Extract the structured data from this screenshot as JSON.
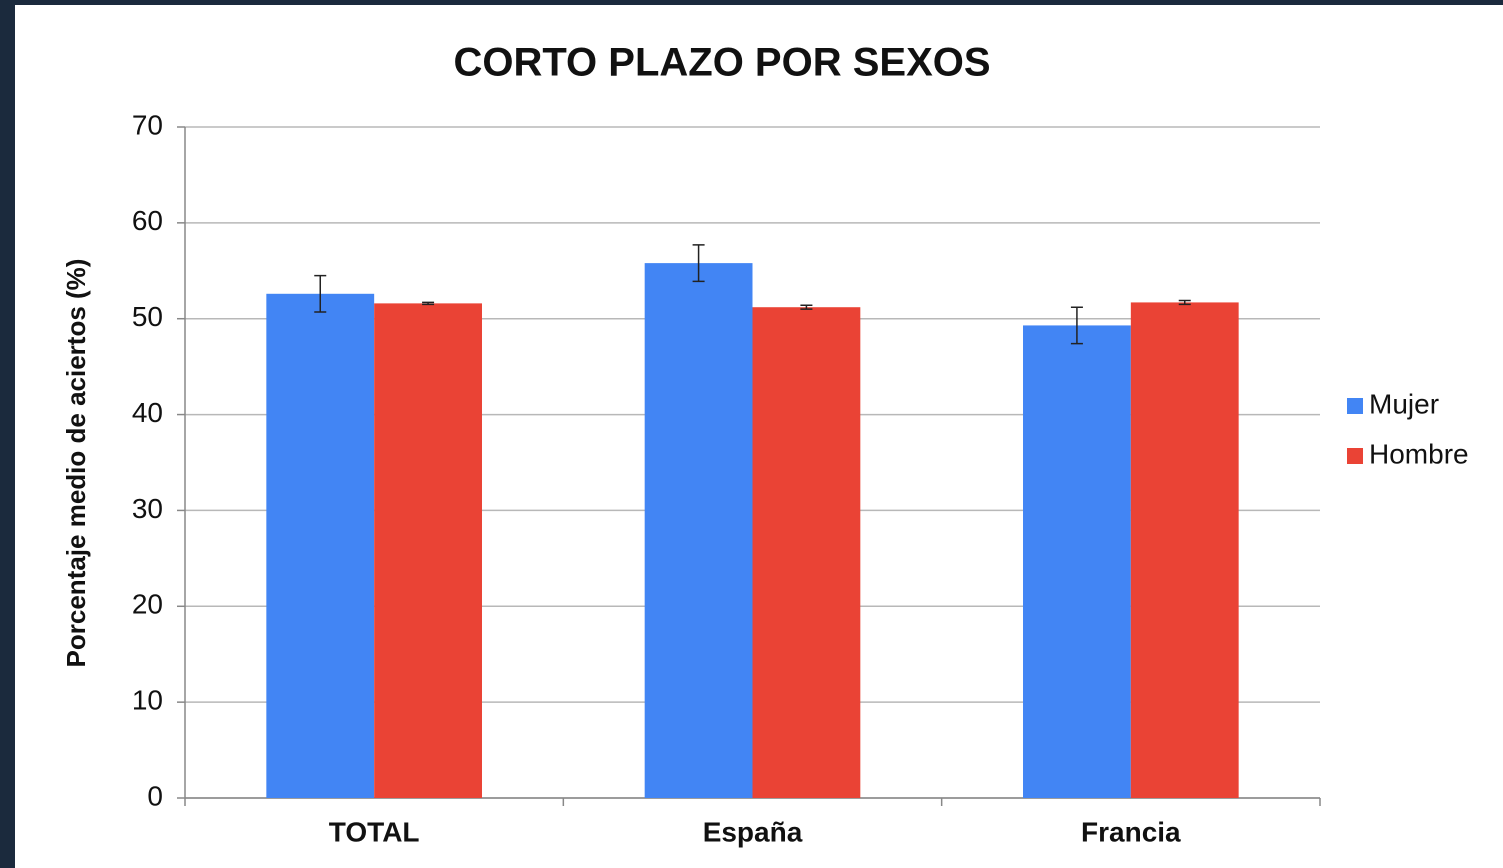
{
  "chart_data": {
    "type": "bar",
    "title": "CORTO PLAZO POR SEXOS",
    "y_label": "Porcentaje medio de aciertos (%)",
    "categories": [
      "TOTAL",
      "España",
      "Francia"
    ],
    "series": [
      {
        "name": "Mujer",
        "color": "#4285f4",
        "values": [
          52.6,
          55.8,
          49.3
        ],
        "errors": [
          1.9,
          1.9,
          1.9
        ]
      },
      {
        "name": "Hombre",
        "color": "#ea4335",
        "values": [
          51.6,
          51.2,
          51.7
        ],
        "errors": [
          0.1,
          0.2,
          0.2
        ]
      }
    ],
    "ylim": [
      0,
      70
    ],
    "yticks": [
      0,
      10,
      20,
      30,
      40,
      50,
      60,
      70
    ],
    "grid": true,
    "legend": "right"
  }
}
